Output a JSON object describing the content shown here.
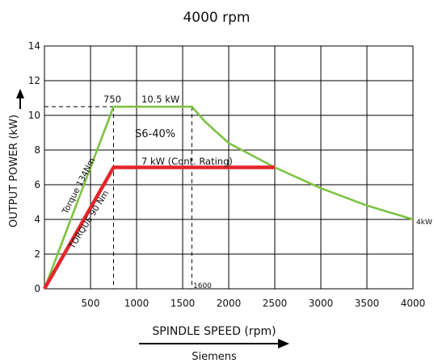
{
  "chart_data": {
    "type": "line",
    "title": "4000 rpm",
    "xlabel": "SPINDLE SPEED (rpm)",
    "ylabel": "OUTPUT POWER (kW)",
    "source": "Siemens",
    "xlim": [
      0,
      4000
    ],
    "ylim": [
      0,
      14
    ],
    "x_ticks": [
      "500",
      "1000",
      "1500",
      "2000",
      "2500",
      "3000",
      "3500",
      "4000"
    ],
    "y_ticks": [
      "0",
      "2",
      "4",
      "6",
      "8",
      "10",
      "12",
      "14"
    ],
    "grid": true,
    "series": [
      {
        "name": "",
        "color": "#7dc242",
        "points": [
          [
            0,
            0
          ],
          [
            750,
            10.5
          ],
          [
            1600,
            10.5
          ],
          [
            1750,
            9.6
          ],
          [
            2000,
            8.4
          ],
          [
            2500,
            7.0
          ],
          [
            3000,
            5.8
          ],
          [
            3500,
            4.8
          ],
          [
            4000,
            4.0
          ]
        ]
      },
      {
        "name": "",
        "color": "#e3262b",
        "points": [
          [
            0,
            0
          ],
          [
            750,
            7.0
          ],
          [
            2500,
            7.0
          ]
        ]
      }
    ],
    "annotations": {
      "green_torque": "Torque 134Nm",
      "red_torque": "TORQUE 90 Nm",
      "corner_speed": "750",
      "peak_power": "10.5 kW",
      "duty_cycle": "S6-40%",
      "cont_rating": "7 kW (Cont. Rating)",
      "speed_1600": "1600",
      "end_power": "4kW"
    },
    "reference_lines": {
      "power_10_5": 10.5,
      "speed_750": 750,
      "speed_1600": 1600
    }
  }
}
